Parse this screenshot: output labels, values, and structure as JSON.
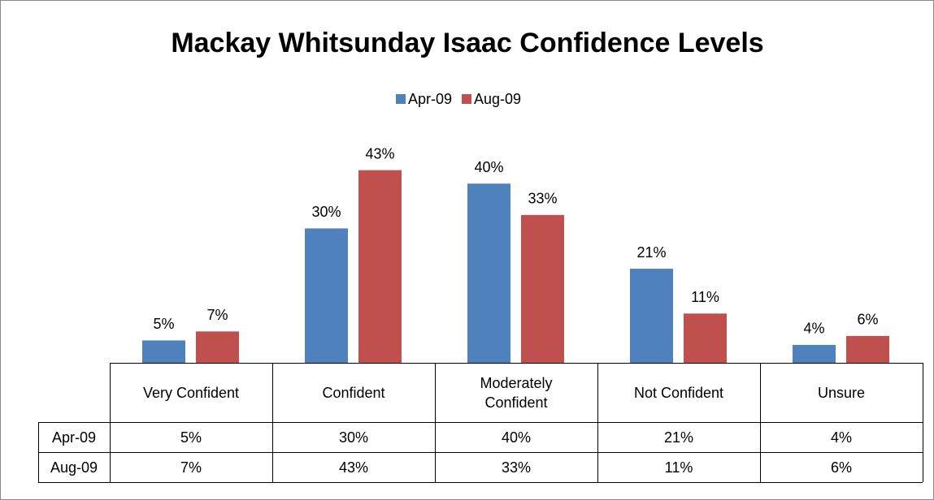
{
  "chart_data": {
    "type": "bar",
    "title": "Mackay Whitsunday Isaac Confidence Levels",
    "categories": [
      "Very Confident",
      "Confident",
      "Moderately Confident",
      "Not Confident",
      "Unsure"
    ],
    "series": [
      {
        "name": "Apr-09",
        "color": "#4f81bd",
        "values": [
          5,
          30,
          40,
          21,
          4
        ],
        "value_labels": [
          "5%",
          "30%",
          "40%",
          "21%",
          "4%"
        ]
      },
      {
        "name": "Aug-09",
        "color": "#c0504d",
        "values": [
          7,
          43,
          33,
          11,
          6
        ],
        "value_labels": [
          "7%",
          "43%",
          "33%",
          "11%",
          "6%"
        ]
      }
    ],
    "ylim": [
      0,
      50
    ],
    "legend": "top",
    "data_table": true
  }
}
